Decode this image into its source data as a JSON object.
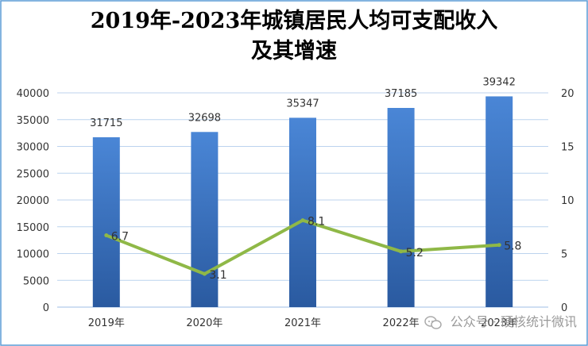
{
  "title_line1": "2019年-2023年城镇居民人均可支配收入",
  "title_line2": "及其增速",
  "watermark": "公众号 · 硬核统计微讯",
  "colors": {
    "bar_top": "#4a86d6",
    "bar_bottom": "#2a5aa0",
    "line": "#8fb847",
    "grid": "#bcd3ee",
    "axis_text": "#333333",
    "frame": "#5b9bd5"
  },
  "chart_data": {
    "type": "bar+line",
    "categories": [
      "2019年",
      "2020年",
      "2021年",
      "2022年",
      "2023年"
    ],
    "series": [
      {
        "type": "bar",
        "axis": "left",
        "values": [
          31715,
          32698,
          35347,
          37185,
          39342
        ]
      },
      {
        "type": "line",
        "axis": "right",
        "values": [
          6.7,
          3.1,
          8.1,
          5.2,
          5.8
        ]
      }
    ],
    "y_left": {
      "min": 0,
      "max": 40000,
      "ticks": [
        0,
        5000,
        10000,
        15000,
        20000,
        25000,
        30000,
        35000,
        40000
      ]
    },
    "y_right": {
      "min": 0,
      "max": 20,
      "ticks": [
        0,
        5,
        10,
        15,
        20
      ]
    },
    "grid": true,
    "legend": "none"
  }
}
